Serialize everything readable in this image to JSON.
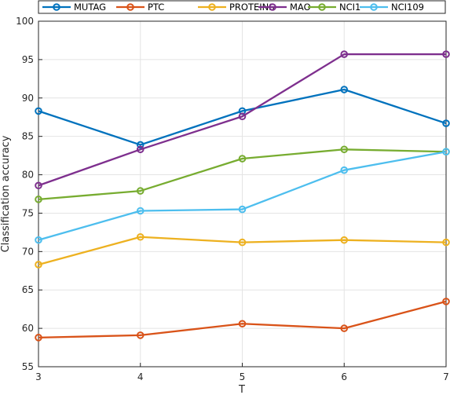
{
  "chart_data": {
    "type": "line",
    "xlabel": "T",
    "ylabel": "Classification accuracy",
    "x": [
      3,
      4,
      5,
      6,
      7
    ],
    "xlim": [
      3,
      7
    ],
    "ylim": [
      55,
      100
    ],
    "xticks": [
      "3",
      "4",
      "5",
      "6",
      "7"
    ],
    "yticks": [
      "55",
      "60",
      "65",
      "70",
      "75",
      "80",
      "85",
      "90",
      "95",
      "100"
    ],
    "grid": true,
    "legend_position": "top",
    "series": [
      {
        "name": "MUTAG",
        "color": "#0072BD",
        "values": [
          88.3,
          83.9,
          88.3,
          91.1,
          86.7
        ]
      },
      {
        "name": "PTC",
        "color": "#D95319",
        "values": [
          58.8,
          59.1,
          60.6,
          60.0,
          63.5
        ]
      },
      {
        "name": "PROTEINS",
        "color": "#EDB120",
        "values": [
          68.3,
          71.9,
          71.2,
          71.5,
          71.2
        ]
      },
      {
        "name": "MAO",
        "color": "#7E2F8E",
        "values": [
          78.6,
          83.3,
          87.6,
          95.7,
          95.7
        ]
      },
      {
        "name": "NCI1",
        "color": "#77AC30",
        "values": [
          76.8,
          77.9,
          82.1,
          83.3,
          83.0
        ]
      },
      {
        "name": "NCI109",
        "color": "#4DBEEE",
        "values": [
          71.5,
          75.3,
          75.5,
          80.6,
          83.0
        ]
      }
    ]
  }
}
